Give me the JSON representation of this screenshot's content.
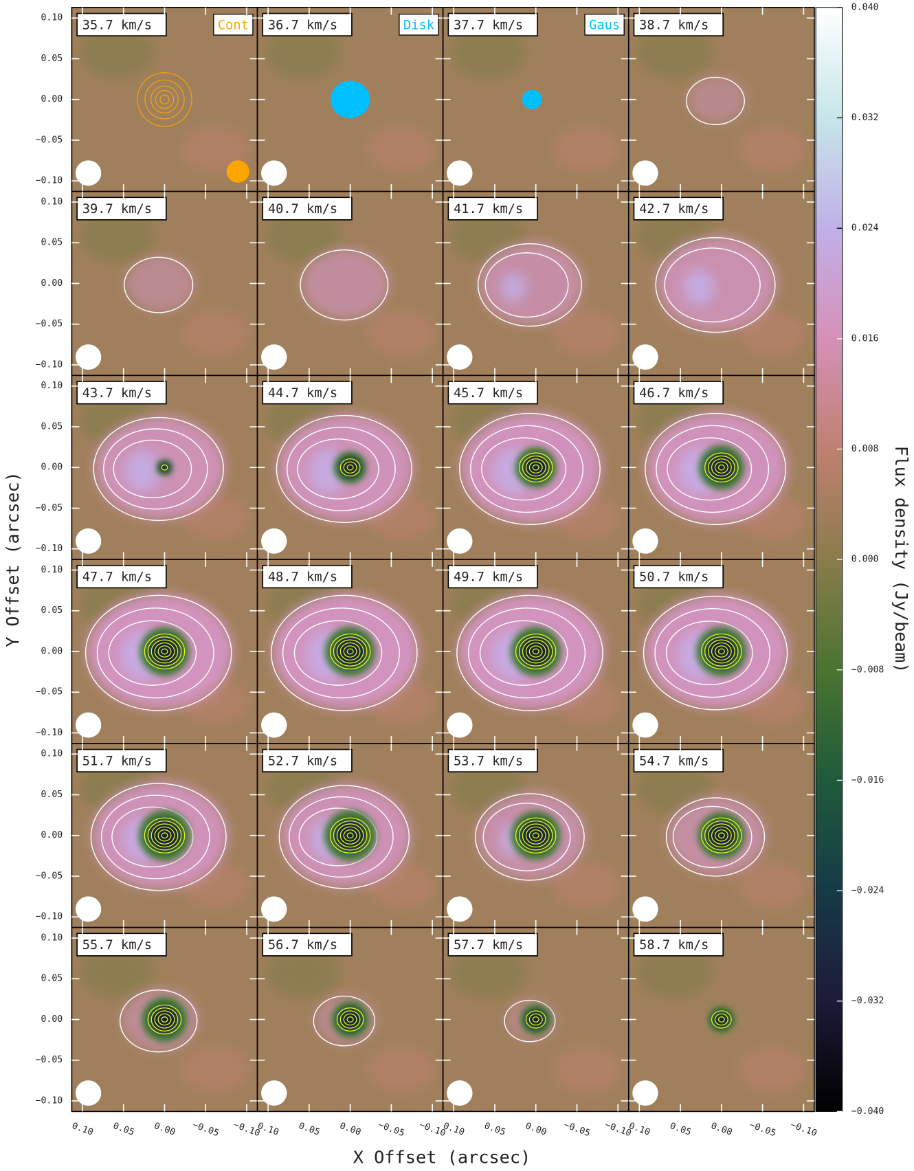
{
  "chart_data": {
    "type": "channel-map",
    "x_label": "X Offset (arcsec)",
    "y_label": "Y Offset (arcsec)",
    "xlim": [
      0.113,
      -0.113
    ],
    "ylim": [
      -0.113,
      0.113
    ],
    "xticks": [
      {
        "value": 0.1,
        "label": "0.10"
      },
      {
        "value": 0.05,
        "label": "0.05"
      },
      {
        "value": 0,
        "label": "0.00"
      },
      {
        "value": -0.05,
        "label": "−0.05"
      },
      {
        "value": -0.1,
        "label": "−0.10"
      }
    ],
    "yticks": [
      {
        "value": 0.1,
        "label": "0.10"
      },
      {
        "value": 0.05,
        "label": "0.05"
      },
      {
        "value": 0,
        "label": "0.00"
      },
      {
        "value": -0.05,
        "label": "−0.05"
      },
      {
        "value": -0.1,
        "label": "−0.10"
      }
    ],
    "panels": [
      "35.7 km/s",
      "36.7 km/s",
      "37.7 km/s",
      "38.7 km/s",
      "39.7 km/s",
      "40.7 km/s",
      "41.7 km/s",
      "42.7 km/s",
      "43.7 km/s",
      "44.7 km/s",
      "45.7 km/s",
      "46.7 km/s",
      "47.7 km/s",
      "48.7 km/s",
      "49.7 km/s",
      "50.7 km/s",
      "51.7 km/s",
      "52.7 km/s",
      "53.7 km/s",
      "54.7 km/s",
      "55.7 km/s",
      "56.7 km/s",
      "57.7 km/s",
      "58.7 km/s"
    ],
    "legend": [
      {
        "name": "Cont",
        "color": "#ffa500"
      },
      {
        "name": "Disk",
        "color": "#00bfff"
      },
      {
        "name": "Gaus",
        "color": "#00bfff"
      }
    ],
    "colorbar": {
      "label": "Flux density (Jy/beam)",
      "clim": [
        -0.04,
        0.04
      ],
      "colors": [
        "#000000",
        "#1c1a38",
        "#163a48",
        "#1f5a3a",
        "#4a7430",
        "#8a7c4c",
        "#c08070",
        "#d690b8",
        "#c0b0e8",
        "#c6e6ea",
        "#ffffff"
      ],
      "ticks": [
        {
          "value": 0.04,
          "label": "0.040"
        },
        {
          "value": 0.032,
          "label": "0.032"
        },
        {
          "value": 0.024,
          "label": "0.024"
        },
        {
          "value": 0.016,
          "label": "0.016"
        },
        {
          "value": 0.008,
          "label": "0.008"
        },
        {
          "value": 0,
          "label": "0.000"
        },
        {
          "value": -0.008,
          "label": "−0.008"
        },
        {
          "value": -0.016,
          "label": "−0.016"
        },
        {
          "value": -0.024,
          "label": "−0.024"
        },
        {
          "value": -0.032,
          "label": "−0.032"
        },
        {
          "value": -0.04,
          "label": "−0.040"
        }
      ]
    }
  }
}
